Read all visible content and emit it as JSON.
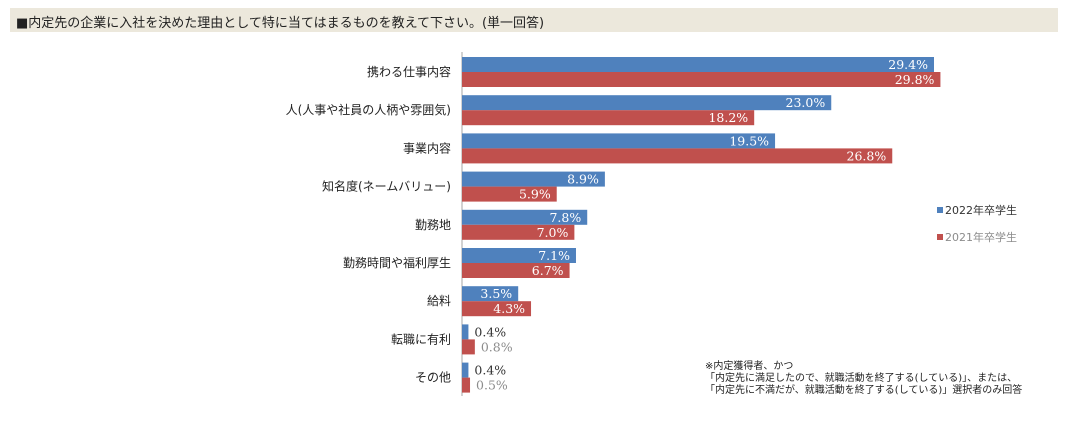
{
  "header": {
    "title": "■内定先の企業に入社を決めた理由として特に当てはまるものを教えて下さい。(単一回答)"
  },
  "chart_data": {
    "type": "bar",
    "orientation": "horizontal",
    "categories": [
      "携わる仕事内容",
      "人(人事や社員の人柄や雰囲気)",
      "事業内容",
      "知名度(ネームバリュー)",
      "勤務地",
      "勤務時間や福利厚生",
      "給料",
      "転職に有利",
      "その他"
    ],
    "series": [
      {
        "name": "2022年卒学生",
        "color": "#4f81bd",
        "values": [
          29.4,
          23.0,
          19.5,
          8.9,
          7.8,
          7.1,
          3.5,
          0.4,
          0.4
        ]
      },
      {
        "name": "2021年卒学生",
        "color": "#c0504d",
        "values": [
          29.8,
          18.2,
          26.8,
          5.9,
          7.0,
          6.7,
          4.3,
          0.8,
          0.5
        ]
      }
    ],
    "value_labels": [
      [
        "29.4%",
        "23.0%",
        "19.5%",
        "8.9%",
        "7.8%",
        "7.1%",
        "3.5%",
        "0.4%",
        "0.4%"
      ],
      [
        "29.8%",
        "18.2%",
        "26.8%",
        "5.9%",
        "7.0%",
        "6.7%",
        "4.3%",
        "0.8%",
        "0.5%"
      ]
    ],
    "xlim": [
      0,
      35
    ],
    "grid": false,
    "legend_position": "right"
  },
  "footnote": {
    "line1": "※内定獲得者、かつ",
    "line2": "「内定先に満足したので、就職活動を終了する(している)」、または、",
    "line3": "「内定先に不満だが、就職活動を終了する(している)」選択者のみ回答"
  }
}
